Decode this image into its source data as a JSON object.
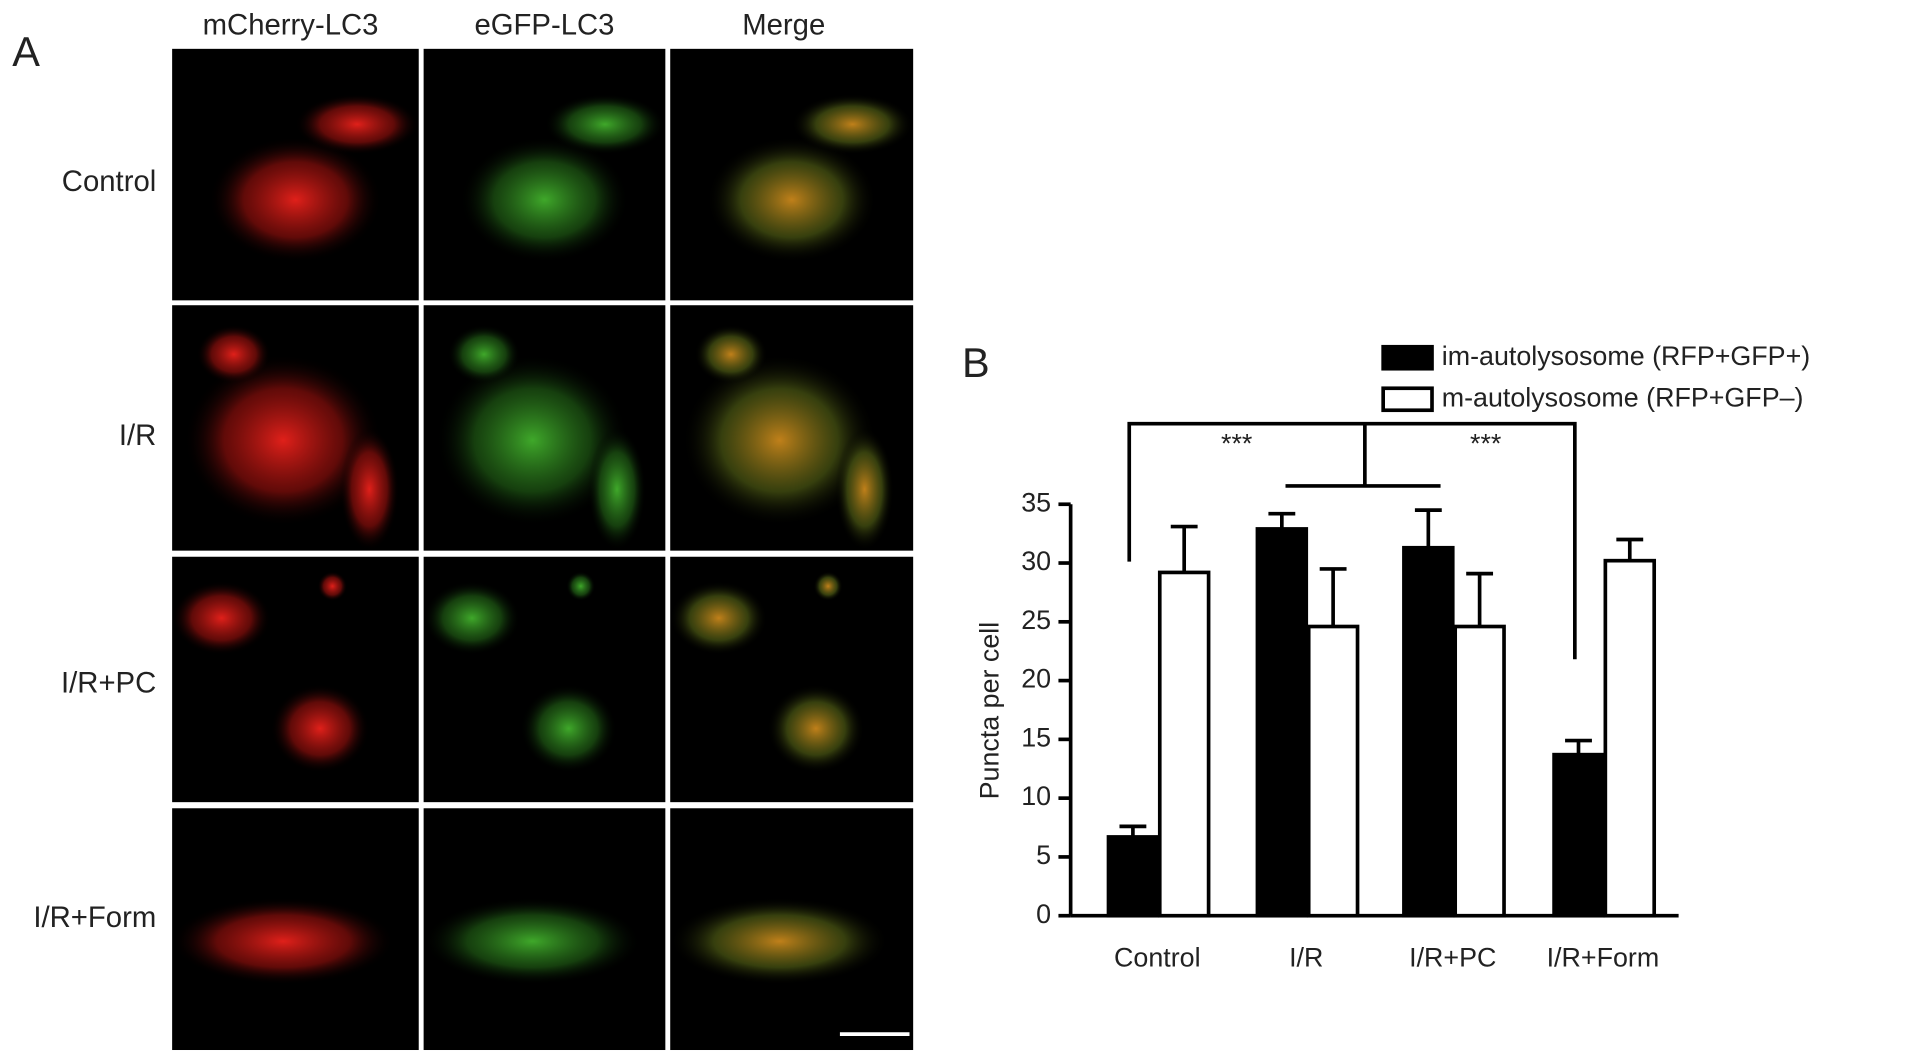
{
  "panel_a": {
    "label": "A",
    "columns": [
      "mCherry-LC3",
      "eGFP-LC3",
      "Merge"
    ],
    "rows": [
      "Control",
      "I/R",
      "I/R+PC",
      "I/R+Form"
    ]
  },
  "chart_data": {
    "type": "bar",
    "panel_label": "B",
    "ylabel": "Puncta per cell",
    "categories": [
      "Control",
      "I/R",
      "I/R+PC",
      "I/R+Form"
    ],
    "series": [
      {
        "name": "im-autolysosome (RFP+GFP+)",
        "color": "#000000",
        "values": [
          6.7,
          32.9,
          31.3,
          13.7
        ],
        "errors": [
          0.9,
          1.3,
          3.2,
          1.2
        ]
      },
      {
        "name": "m-autolysosome (RFP+GFP–)",
        "color": "#ffffff",
        "values": [
          29.2,
          24.6,
          24.6,
          30.2
        ],
        "errors": [
          3.9,
          4.9,
          4.5,
          1.8
        ]
      }
    ],
    "ylim": [
      0,
      35
    ],
    "yticks": [
      0,
      5,
      10,
      15,
      20,
      25,
      30,
      35
    ],
    "annotations": [
      "***",
      "***"
    ]
  }
}
